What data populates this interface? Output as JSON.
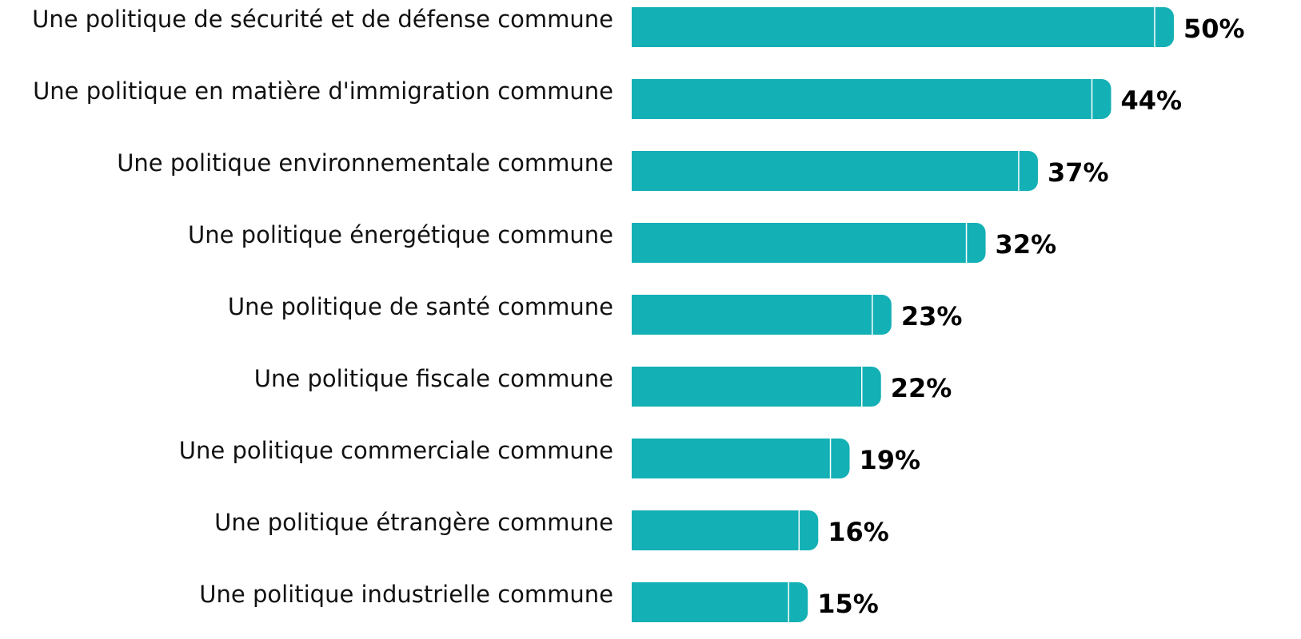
{
  "chart_data": {
    "type": "bar",
    "orientation": "horizontal",
    "color": "#13b0b5",
    "categories": [
      "Une politique de sécurité et de défense commune",
      "Une politique en matière d'immigration commune",
      "Une politique environnementale commune",
      "Une politique énergétique commune",
      "Une politique de santé commune",
      "Une politique fiscale commune",
      "Une politique commerciale commune",
      "Une politique étrangère commune",
      "Une politique industrielle commune"
    ],
    "values": [
      50,
      44,
      37,
      32,
      23,
      22,
      19,
      16,
      15
    ],
    "value_labels": [
      "50%",
      "44%",
      "37%",
      "32%",
      "23%",
      "22%",
      "19%",
      "16%",
      "15%"
    ]
  }
}
